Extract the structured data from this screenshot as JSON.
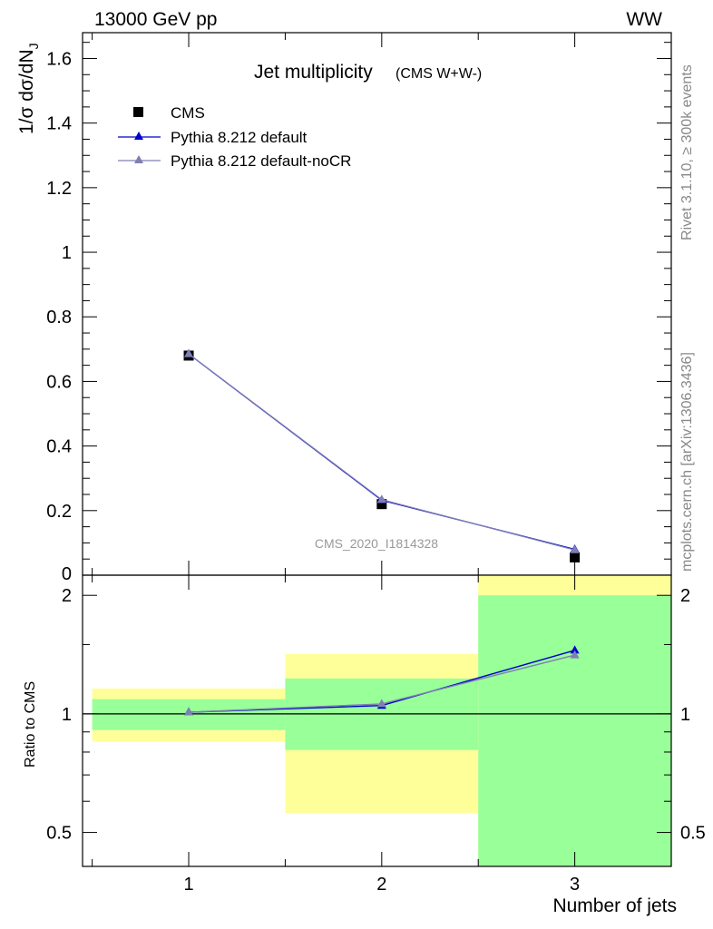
{
  "header": {
    "energy_label": "13000 GeV pp",
    "process_label": "WW"
  },
  "side_labels": {
    "rivet": "Rivet 3.1.10, ≥ 300k events",
    "mcplots": "mcplots.cern.ch [arXiv:1306.3436]"
  },
  "analysis_id": "CMS_2020_I1814328",
  "colors": {
    "data": "#000000",
    "default": "#0000cc",
    "nocr": "#7f7fb2",
    "band_green": "#99ff99",
    "band_yellow": "#ffff99"
  },
  "chart_data": [
    {
      "type": "line",
      "title": "Jet multiplicity",
      "subtitle": "(CMS W+W-)",
      "ylabel_parts": [
        "1/σ dσ/dN",
        "J"
      ],
      "xlabel": "Number of jets",
      "x": [
        1,
        2,
        3
      ],
      "xlim": [
        0.45,
        3.5
      ],
      "ylim": [
        0,
        1.68
      ],
      "y_ticks": [
        {
          "v": 0.2,
          "label": "0.2"
        },
        {
          "v": 0.4,
          "label": "0.4"
        },
        {
          "v": 0.6,
          "label": "0.6"
        },
        {
          "v": 0.8,
          "label": "0.8"
        },
        {
          "v": 1.0,
          "label": "1"
        },
        {
          "v": 1.2,
          "label": "1.2"
        },
        {
          "v": 1.4,
          "label": "1.4"
        },
        {
          "v": 1.6,
          "label": "1.6"
        }
      ],
      "y_zero_label": "0",
      "legend_position": "top-left",
      "series": [
        {
          "key": "data",
          "name": "CMS",
          "marker": "square",
          "values": [
            0.68,
            0.22,
            0.055
          ]
        },
        {
          "key": "default",
          "name": "Pythia 8.212 default",
          "marker": "triangle",
          "values": [
            0.685,
            0.232,
            0.08
          ]
        },
        {
          "key": "nocr",
          "name": "Pythia 8.212 default-noCR",
          "marker": "triangle",
          "values": [
            0.685,
            0.234,
            0.078
          ]
        }
      ]
    },
    {
      "type": "line",
      "ylabel": "Ratio to CMS",
      "xlabel": "Number of jets",
      "yscale": "log",
      "ylim": [
        0.41,
        2.25
      ],
      "x_ticks": [
        {
          "v": 1,
          "label": "1"
        },
        {
          "v": 2,
          "label": "2"
        },
        {
          "v": 3,
          "label": "3"
        }
      ],
      "y_ticks": [
        {
          "v": 0.5,
          "label": "0.5"
        },
        {
          "v": 1,
          "label": "1"
        },
        {
          "v": 2,
          "label": "2"
        }
      ],
      "uncertainty_bands": [
        {
          "x0": 0.5,
          "x1": 1.5,
          "inner": [
            0.91,
            1.09
          ],
          "outer": [
            0.85,
            1.16
          ]
        },
        {
          "x0": 1.5,
          "x1": 2.5,
          "inner": [
            0.81,
            1.23
          ],
          "outer": [
            0.56,
            1.42
          ]
        },
        {
          "x0": 2.5,
          "x1": 3.5,
          "inner": [
            0.0,
            2.0
          ],
          "outer": [
            0.0,
            3.0
          ]
        }
      ],
      "series": [
        {
          "key": "default",
          "name": "Pythia 8.212 default",
          "values": [
            1.01,
            1.05,
            1.45
          ]
        },
        {
          "key": "nocr",
          "name": "Pythia 8.212 default-noCR",
          "values": [
            1.01,
            1.06,
            1.41
          ]
        }
      ]
    }
  ]
}
